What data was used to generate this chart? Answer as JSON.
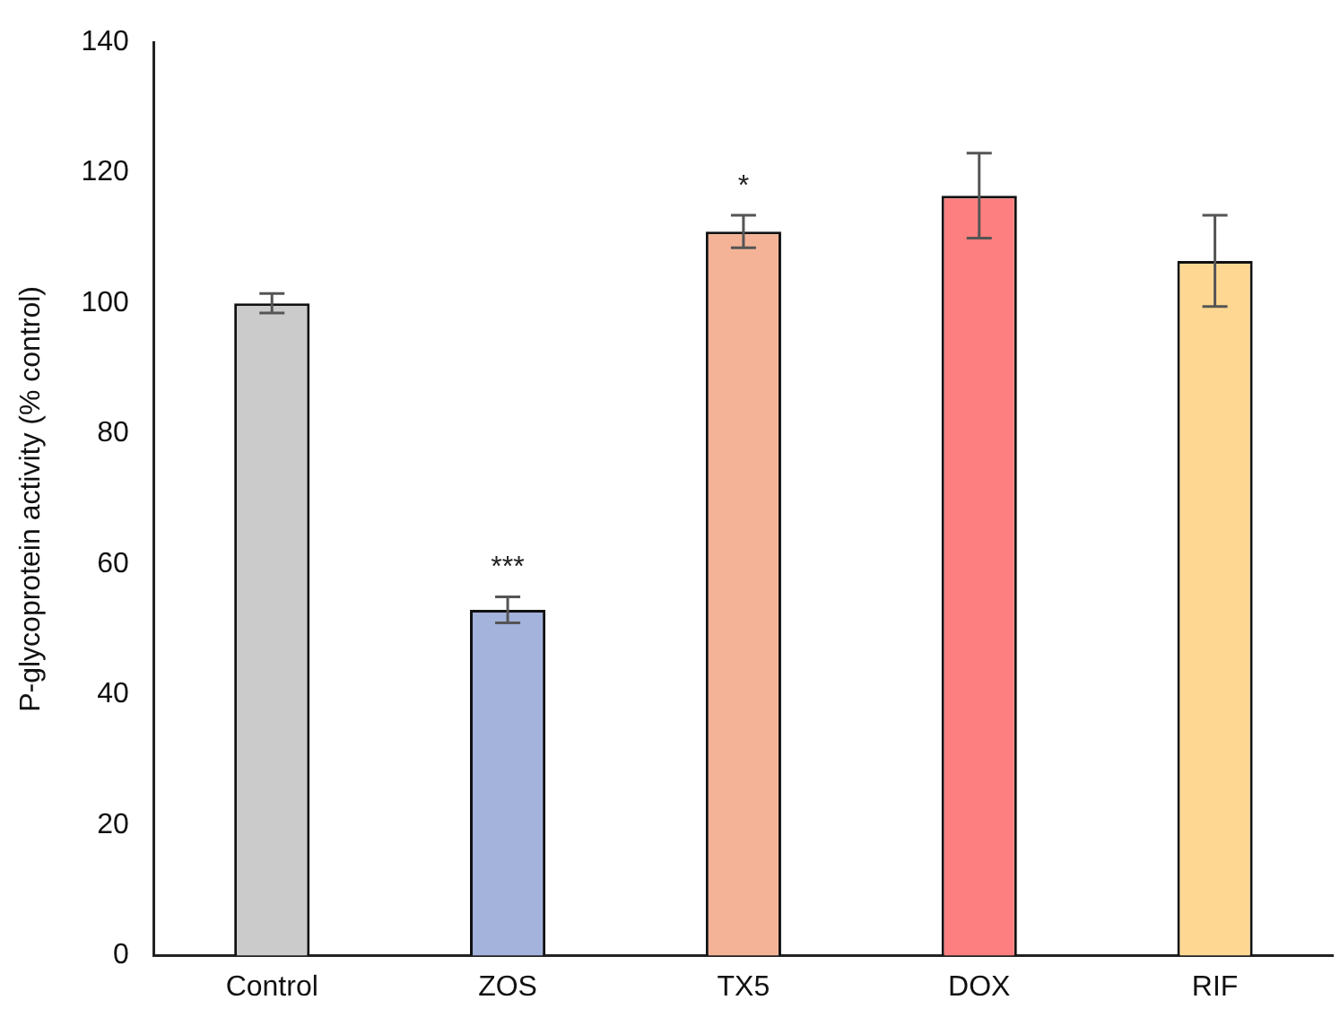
{
  "chart_data": {
    "type": "bar",
    "ylabel": "P-glycoprotein activity (% control)",
    "categories": [
      "Control",
      "ZOS",
      "TX5",
      "DOX",
      "RIF"
    ],
    "values": [
      100,
      53,
      111,
      116.5,
      106.5
    ],
    "colors": [
      "#cbcbcb",
      "#a4b3dc",
      "#f4b396",
      "#fe7f7f",
      "#fed892"
    ],
    "errors": [
      1.5,
      2,
      2.5,
      6.5,
      7
    ],
    "ylim": [
      0,
      140
    ],
    "yticks": [
      0,
      20,
      40,
      60,
      80,
      100,
      120,
      140
    ],
    "annotations": [
      {
        "text": "***",
        "x": "ZOS",
        "y": 53
      },
      {
        "text": "*",
        "x": "TX5",
        "y": 111
      }
    ],
    "grid": false,
    "legend": false
  }
}
